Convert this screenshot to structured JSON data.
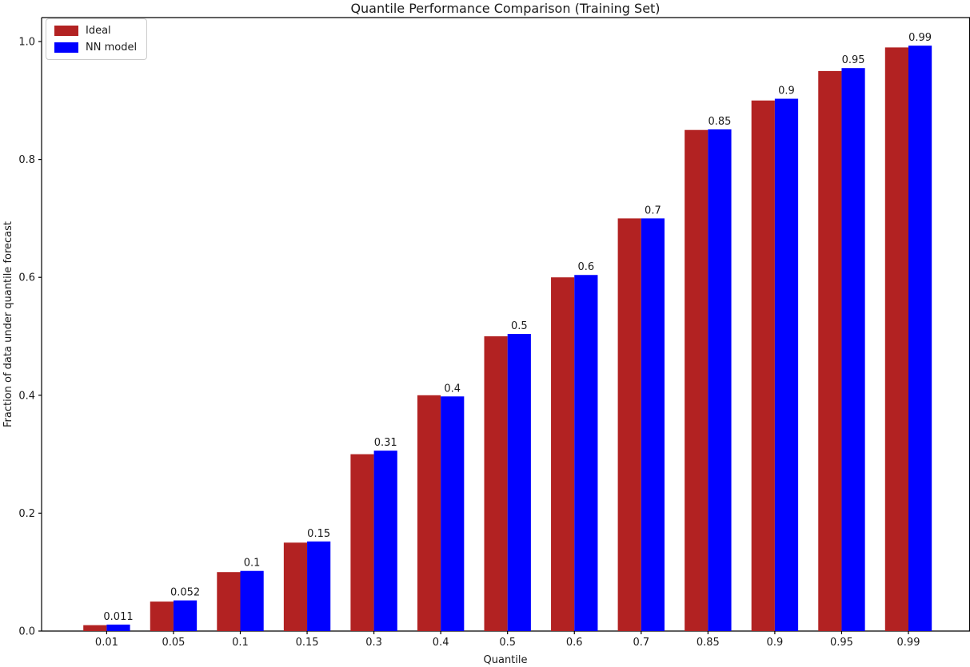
{
  "chart_data": {
    "type": "bar",
    "title": "Quantile Performance Comparison (Training Set)",
    "xlabel": "Quantile",
    "ylabel": "Fraction of data under quantile forecast",
    "categories": [
      "0.01",
      "0.05",
      "0.1",
      "0.15",
      "0.3",
      "0.4",
      "0.5",
      "0.6",
      "0.7",
      "0.85",
      "0.9",
      "0.95",
      "0.99"
    ],
    "series": [
      {
        "name": "Ideal",
        "color": "#B22222",
        "values": [
          0.01,
          0.05,
          0.1,
          0.15,
          0.3,
          0.4,
          0.5,
          0.6,
          0.7,
          0.85,
          0.9,
          0.95,
          0.99
        ]
      },
      {
        "name": "NN model",
        "color": "#0000FF",
        "values": [
          0.011,
          0.052,
          0.102,
          0.152,
          0.306,
          0.398,
          0.504,
          0.604,
          0.7,
          0.851,
          0.903,
          0.955,
          0.993
        ]
      }
    ],
    "bar_labels": [
      "0.011",
      "0.052",
      "0.1",
      "0.15",
      "0.31",
      "0.4",
      "0.5",
      "0.6",
      "0.7",
      "0.85",
      "0.9",
      "0.95",
      "0.99"
    ],
    "yticks": [
      "0.0",
      "0.2",
      "0.4",
      "0.6",
      "0.8",
      "1.0"
    ],
    "ylim": [
      0,
      1.04
    ],
    "xlim_note": "categorical, evenly spaced",
    "legend_position": "upper left",
    "grid": false,
    "axis_color": "#000000",
    "text_color": "#1a1a1a"
  }
}
